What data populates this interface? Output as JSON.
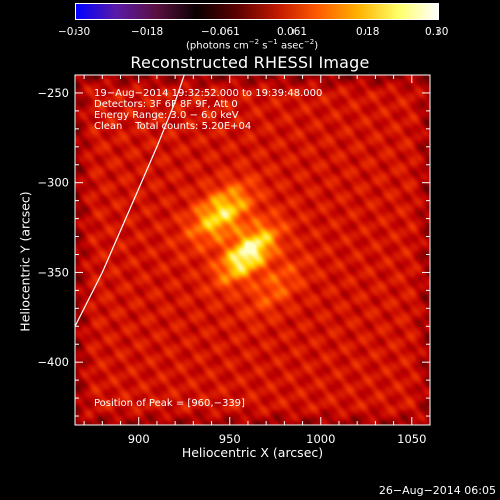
{
  "colorbar": {
    "ticks": [
      "−0.30",
      "−0.18",
      "−0.061",
      "0.061",
      "0.18",
      "0.30"
    ],
    "units_prefix": "(photons cm",
    "units_sup1": "−2",
    "units_mid1": " s",
    "units_sup2": "−1",
    "units_mid2": " asec",
    "units_sup3": "−2",
    "units_suffix": ")",
    "stops": [
      "#0000ff",
      "#5a1aa8",
      "#5a1040",
      "#0a0000",
      "#5a0000",
      "#c01800",
      "#ff5a00",
      "#ffb000",
      "#ffff66",
      "#ffffff"
    ]
  },
  "title": "Reconstructed RHESSI Image",
  "annotations": {
    "time_range": "19−Aug−2014 19:32:52.000 to 19:39:48.000",
    "detectors": "Detectors: 3F 6F 8F 9F, Att 0",
    "energy": "Energy Range: 3.0 − 6.0 keV",
    "clean": "Clean    Total counts: 5.20E+04",
    "peak": "Position of Peak = [960,−339]"
  },
  "footer": {
    "timestamp": "26−Aug−2014 06:05"
  },
  "chart_data": {
    "type": "heatmap",
    "title": "Reconstructed RHESSI Image",
    "xlabel": "Heliocentric X (arcsec)",
    "ylabel": "Heliocentric Y (arcsec)",
    "xlim": [
      865,
      1060
    ],
    "ylim": [
      -435,
      -240
    ],
    "x_ticks": [
      900,
      950,
      1000,
      1050
    ],
    "y_ticks": [
      -250,
      -300,
      -350,
      -400
    ],
    "x_tick_labels": [
      "900",
      "950",
      "1000",
      "1050"
    ],
    "y_tick_labels": [
      "−250",
      "−300",
      "−350",
      "−400"
    ],
    "colorbar_range": [
      -0.3,
      0.3
    ],
    "peak_position": [
      960,
      -339
    ],
    "sources": [
      {
        "x": 960,
        "y": -339,
        "amplitude": 1.0
      },
      {
        "x": 948,
        "y": -318,
        "amplitude": 0.55
      },
      {
        "x": 940,
        "y": -315,
        "amplitude": 0.35
      },
      {
        "x": 975,
        "y": -358,
        "amplitude": 0.35
      }
    ],
    "limb_curve": [
      [
        865,
        -380
      ],
      [
        880,
        -350
      ],
      [
        895,
        -315
      ],
      [
        910,
        -280
      ],
      [
        920,
        -255
      ],
      [
        925,
        -240
      ]
    ]
  }
}
